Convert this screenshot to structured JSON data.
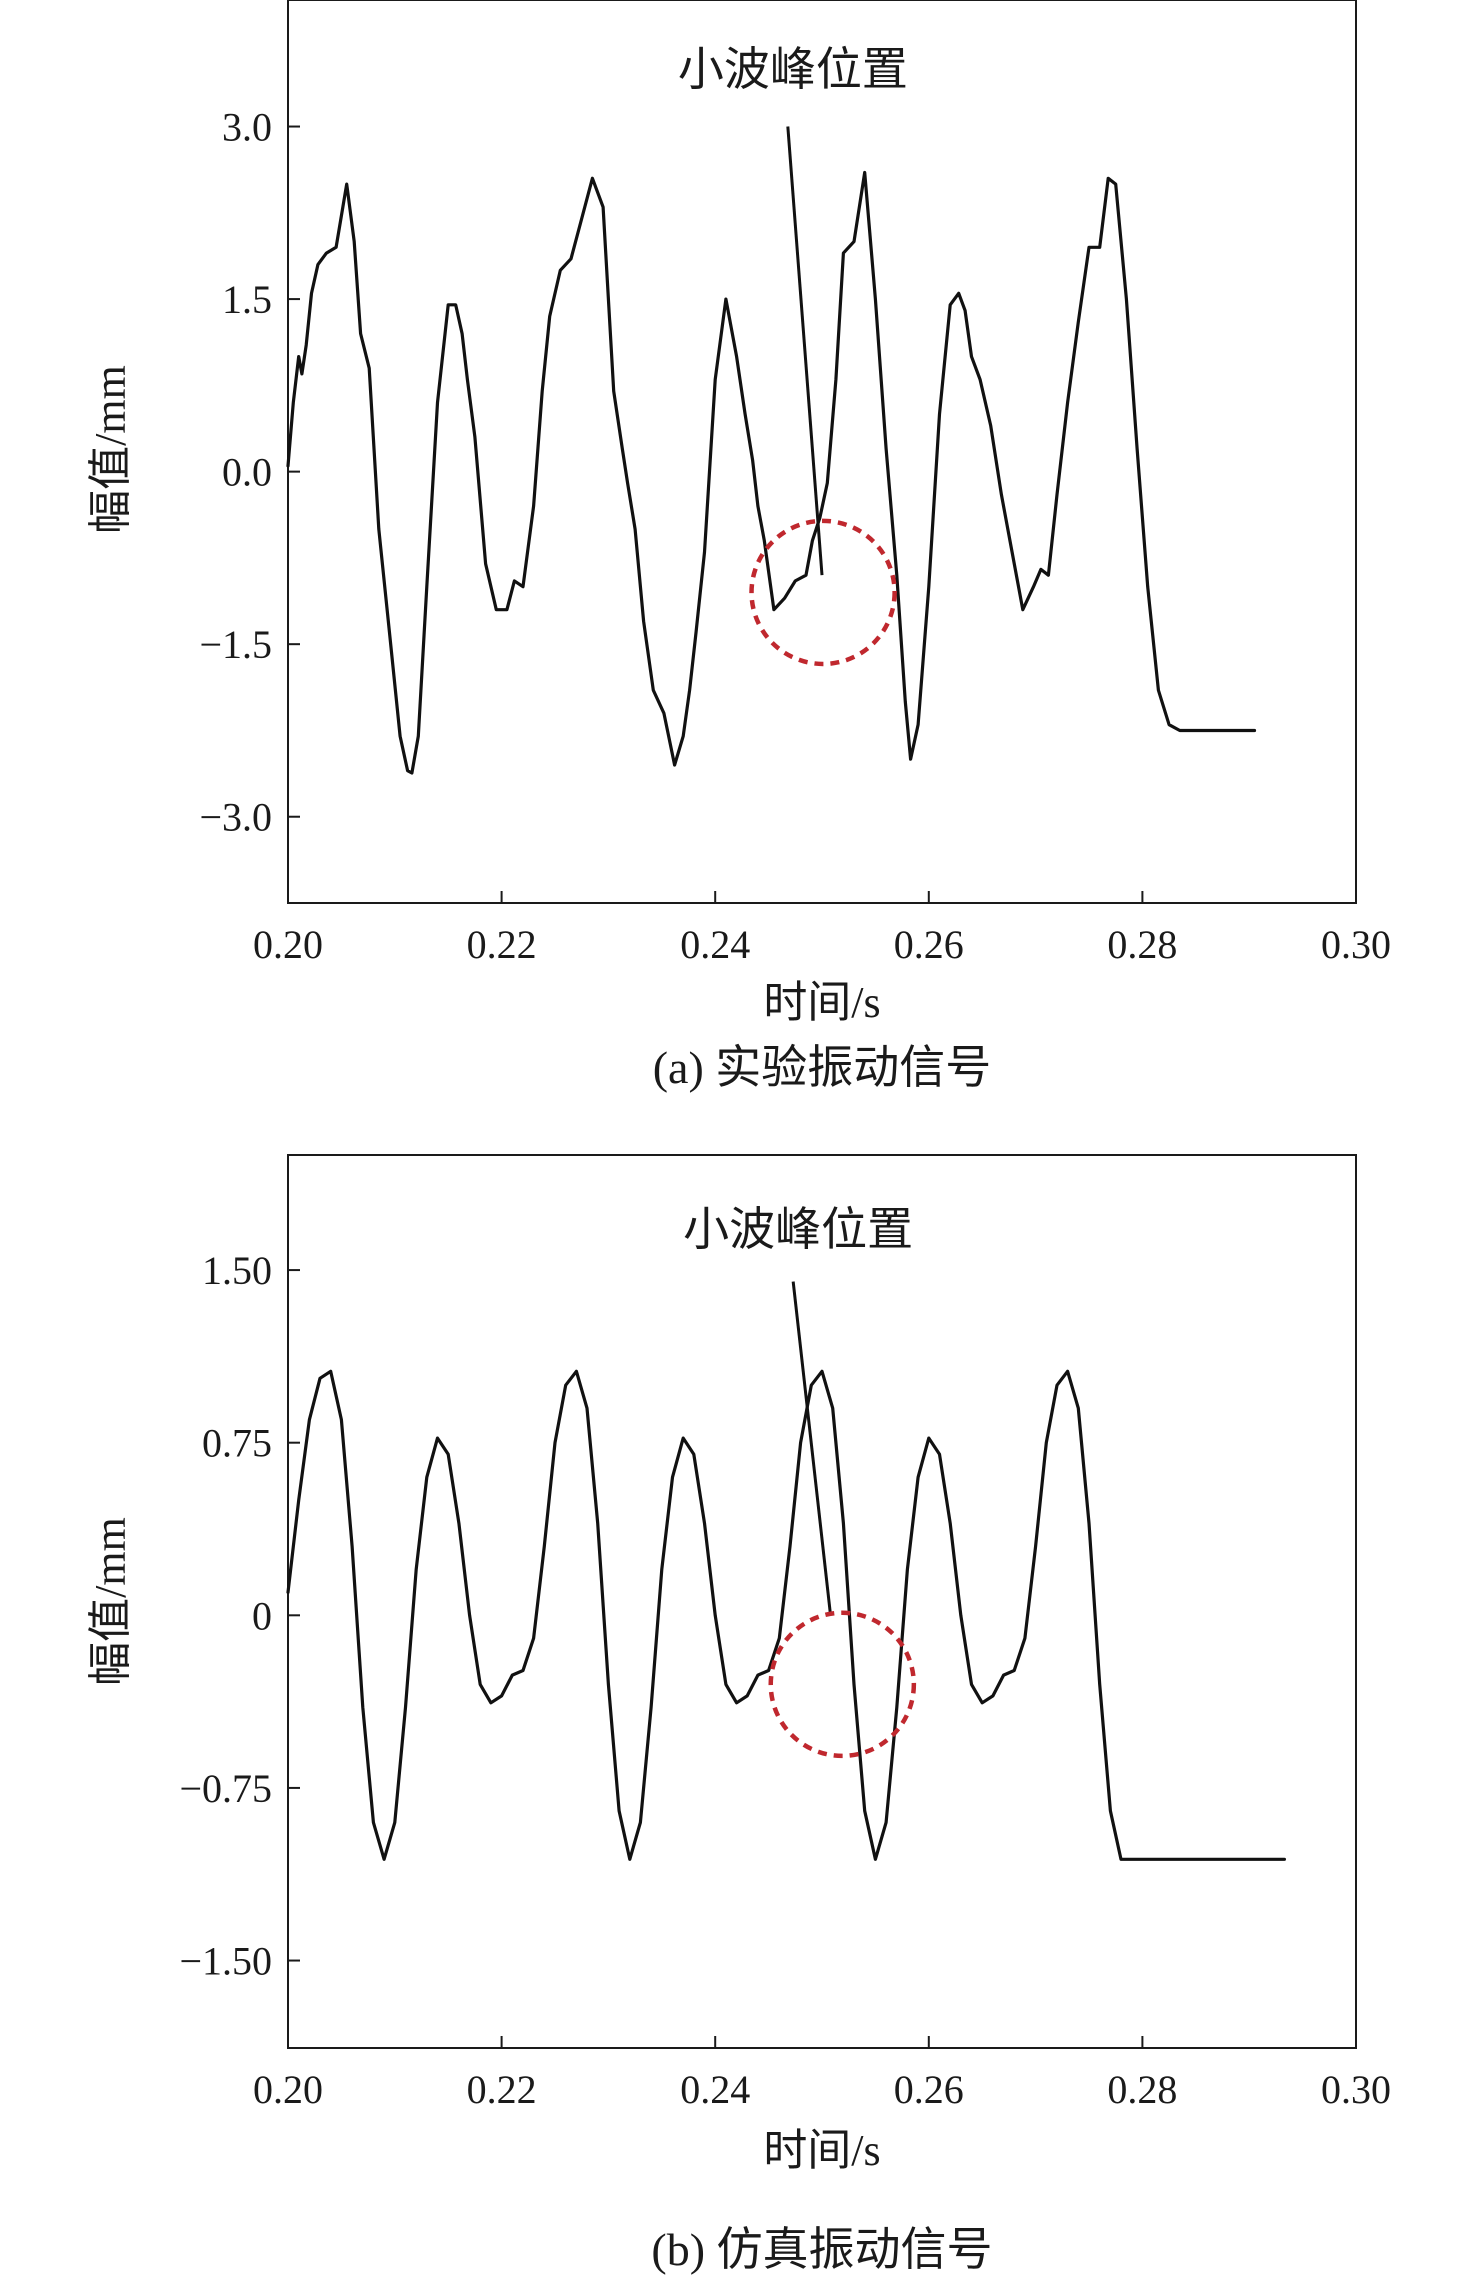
{
  "chart_data": [
    {
      "type": "line",
      "caption": "(a) 实验振动信号",
      "xlabel": "时间/s",
      "ylabel": "幅值/mm",
      "xlim": [
        0.2,
        0.3
      ],
      "ylim": [
        -3.75,
        4.1
      ],
      "xticks": [
        0.2,
        0.22,
        0.24,
        0.26,
        0.28,
        0.3
      ],
      "xtick_labels": [
        "0.20",
        "0.22",
        "0.24",
        "0.26",
        "0.28",
        "0.30"
      ],
      "yticks": [
        3.0,
        1.5,
        0.0,
        -1.5,
        -3.0
      ],
      "ytick_labels": [
        "3.0",
        "1.5",
        "0.0",
        "−1.5",
        "−3.0"
      ],
      "grid": false,
      "annotation": {
        "text": "小波峰位置",
        "line_from": [
          0.2468,
          3.0
        ],
        "line_to": [
          0.25,
          -0.9
        ],
        "circle_center": [
          0.2501,
          -1.05
        ],
        "circle_radius_x": 0.0067
      },
      "series": [
        {
          "x": [
            0.2,
            0.2005,
            0.201,
            0.2013,
            0.2017,
            0.2022,
            0.2028,
            0.2036,
            0.2045,
            0.2055,
            0.2062,
            0.2068,
            0.2076,
            0.2085,
            0.2095,
            0.2105,
            0.2112,
            0.2116,
            0.2122,
            0.213,
            0.214,
            0.215,
            0.2157,
            0.2163,
            0.2168,
            0.2175,
            0.2185,
            0.2195,
            0.2205,
            0.2212,
            0.222,
            0.223,
            0.2238,
            0.2245,
            0.2255,
            0.2265,
            0.2275,
            0.2285,
            0.2295,
            0.2305,
            0.2313,
            0.2318,
            0.2325,
            0.2333,
            0.2342,
            0.2352,
            0.2362,
            0.237,
            0.2376,
            0.2382,
            0.239,
            0.24,
            0.241,
            0.242,
            0.2428,
            0.2435,
            0.244,
            0.2446,
            0.2455,
            0.2465,
            0.2475,
            0.2485,
            0.2491,
            0.2498,
            0.2505,
            0.2513,
            0.252,
            0.253,
            0.254,
            0.255,
            0.256,
            0.257,
            0.2578,
            0.2583,
            0.259,
            0.26,
            0.261,
            0.262,
            0.2628,
            0.2634,
            0.264,
            0.2648,
            0.2658,
            0.2668,
            0.2678,
            0.2688,
            0.2698,
            0.2705,
            0.2712,
            0.272,
            0.273,
            0.274,
            0.275,
            0.276,
            0.2768,
            0.2775,
            0.2785,
            0.2795,
            0.2805,
            0.2815,
            0.2825,
            0.2835,
            0.2845,
            0.2852,
            0.2858,
            0.2865,
            0.2875,
            0.2885,
            0.2895,
            0.2905
          ],
          "y": [
            0.05,
            0.6,
            1.0,
            0.85,
            1.1,
            1.55,
            1.8,
            1.9,
            1.95,
            2.5,
            2.0,
            1.2,
            0.9,
            -0.5,
            -1.4,
            -2.3,
            -2.6,
            -2.62,
            -2.3,
            -1.0,
            0.6,
            1.45,
            1.45,
            1.2,
            0.8,
            0.3,
            -0.8,
            -1.2,
            -1.2,
            -0.95,
            -1.0,
            -0.3,
            0.7,
            1.35,
            1.75,
            1.85,
            2.2,
            2.55,
            2.3,
            0.7,
            0.2,
            -0.1,
            -0.5,
            -1.3,
            -1.9,
            -2.1,
            -2.55,
            -2.3,
            -1.9,
            -1.4,
            -0.7,
            0.8,
            1.5,
            1.0,
            0.5,
            0.1,
            -0.3,
            -0.6,
            -1.2,
            -1.1,
            -0.95,
            -0.9,
            -0.6,
            -0.4,
            -0.1,
            0.8,
            1.9,
            2.0,
            2.6,
            1.5,
            0.2,
            -0.9,
            -2.0,
            -2.5,
            -2.2,
            -1.0,
            0.5,
            1.45,
            1.55,
            1.4,
            1.0,
            0.8,
            0.4,
            -0.2,
            -0.7,
            -1.2,
            -1.0,
            -0.85,
            -0.9,
            -0.2,
            0.6,
            1.3,
            1.95,
            1.95,
            2.55,
            2.5,
            1.5,
            0.2,
            -1.0,
            -1.9,
            -2.2,
            -2.25,
            -2.25,
            -2.25,
            -2.25,
            -2.25,
            -2.25,
            -2.25,
            -2.25,
            -2.25
          ]
        }
      ]
    },
    {
      "type": "line",
      "caption": "(b) 仿真振动信号",
      "xlabel": "时间/s",
      "ylabel": "幅值/mm",
      "xlim": [
        0.2,
        0.3
      ],
      "ylim": [
        -1.88,
        2.0
      ],
      "xticks": [
        0.2,
        0.22,
        0.24,
        0.26,
        0.28,
        0.3
      ],
      "xtick_labels": [
        "0.20",
        "0.22",
        "0.24",
        "0.26",
        "0.28",
        "0.30"
      ],
      "yticks": [
        1.5,
        0.75,
        0.0,
        -0.75,
        -1.5
      ],
      "ytick_labels": [
        "1.50",
        "0.75",
        "0",
        "−0.75",
        "−1.50"
      ],
      "grid": false,
      "annotation": {
        "text": "小波峰位置",
        "line_from": [
          0.2473,
          1.45
        ],
        "line_to": [
          0.2508,
          0.0
        ],
        "circle_center": [
          0.2519,
          -0.3
        ],
        "circle_radius_x": 0.0067
      },
      "series": [
        {
          "x": [
            0.2,
            0.201,
            0.202,
            0.203,
            0.204,
            0.205,
            0.206,
            0.207,
            0.208,
            0.209,
            0.21,
            0.211,
            0.212,
            0.213,
            0.214,
            0.215,
            0.216,
            0.217,
            0.218,
            0.219,
            0.22,
            0.221,
            0.222,
            0.223,
            0.224,
            0.225,
            0.226,
            0.227,
            0.228,
            0.229,
            0.23,
            0.231,
            0.232,
            0.233,
            0.234,
            0.235,
            0.236,
            0.237,
            0.238,
            0.239,
            0.24,
            0.241,
            0.242,
            0.243,
            0.244,
            0.245,
            0.246,
            0.247,
            0.248,
            0.249,
            0.25,
            0.251,
            0.252,
            0.253,
            0.254,
            0.255,
            0.256,
            0.257,
            0.258,
            0.259,
            0.26,
            0.261,
            0.262,
            0.263,
            0.264,
            0.265,
            0.266,
            0.267,
            0.268,
            0.269,
            0.27,
            0.271,
            0.272,
            0.273,
            0.274,
            0.275,
            0.276,
            0.277,
            0.278,
            0.279,
            0.28,
            0.281,
            0.282,
            0.283,
            0.284,
            0.285,
            0.286,
            0.287,
            0.288,
            0.289,
            0.29,
            0.291,
            0.292,
            0.2933
          ],
          "y": [
            0.1,
            0.5,
            0.85,
            1.03,
            1.06,
            0.85,
            0.3,
            -0.4,
            -0.9,
            -1.06,
            -0.9,
            -0.4,
            0.2,
            0.6,
            0.77,
            0.7,
            0.4,
            0.0,
            -0.3,
            -0.38,
            -0.35,
            -0.26,
            -0.24,
            -0.1,
            0.3,
            0.75,
            1.0,
            1.06,
            0.9,
            0.4,
            -0.3,
            -0.85,
            -1.06,
            -0.9,
            -0.4,
            0.2,
            0.6,
            0.77,
            0.7,
            0.4,
            0.0,
            -0.3,
            -0.38,
            -0.35,
            -0.26,
            -0.24,
            -0.1,
            0.3,
            0.75,
            1.0,
            1.06,
            0.9,
            0.4,
            -0.3,
            -0.85,
            -1.06,
            -0.9,
            -0.4,
            0.2,
            0.6,
            0.77,
            0.7,
            0.4,
            0.0,
            -0.3,
            -0.38,
            -0.35,
            -0.26,
            -0.24,
            -0.1,
            0.3,
            0.75,
            1.0,
            1.06,
            0.9,
            0.4,
            -0.3,
            -0.85,
            -1.06,
            -1.06,
            -1.06,
            -1.06,
            -1.06,
            -1.06,
            -1.06,
            -1.06,
            -1.06,
            -1.06,
            -1.06,
            -1.06,
            -1.06,
            -1.06,
            -1.06,
            -1.06
          ]
        }
      ]
    }
  ],
  "colors": {
    "line": "#111111",
    "axis": "#1a1a1a",
    "circle": "#c0282e"
  }
}
